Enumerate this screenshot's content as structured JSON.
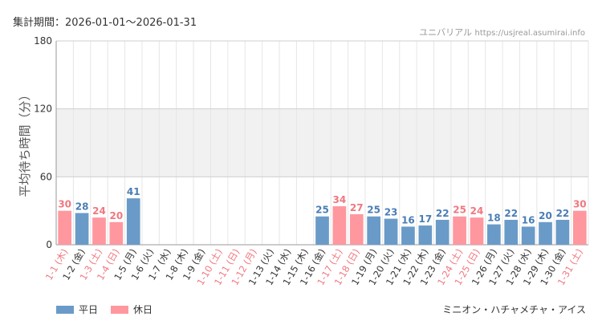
{
  "header": {
    "period": "集計期間：2026-01-01〜2026-01-31",
    "source_name": "ユニバリアル",
    "source_site": "https://usjreal.asumirai.info"
  },
  "footnote": "ミニオン・ハチャメチャ・アイス",
  "legend": [
    {
      "label": "平日",
      "color": "#6a9bc8"
    },
    {
      "label": "休日",
      "color": "#ff979f"
    }
  ],
  "colors": {
    "weekday_bar": "#6a9bc8",
    "holiday_bar": "#ff979f",
    "weekday_label": "#4a7db5",
    "holiday_label": "#f07880",
    "band": "#f1f1f1",
    "grid": "#e6e6e6"
  },
  "chart_data": {
    "type": "bar",
    "title": "",
    "xlabel": "",
    "ylabel": "平均待ち時間（分）",
    "ylim": [
      0,
      180
    ],
    "yticks": [
      0,
      60,
      120,
      180
    ],
    "shaded_band": [
      60,
      120
    ],
    "grid": true,
    "legend_position": "bottom-left",
    "categories": [
      "1-1 (木)",
      "1-2 (金)",
      "1-3 (土)",
      "1-4 (日)",
      "1-5 (月)",
      "1-6 (火)",
      "1-7 (水)",
      "1-8 (木)",
      "1-9 (金)",
      "1-10 (土)",
      "1-11 (日)",
      "1-12 (月)",
      "1-13 (火)",
      "1-14 (水)",
      "1-15 (木)",
      "1-16 (金)",
      "1-17 (土)",
      "1-18 (日)",
      "1-19 (月)",
      "1-20 (火)",
      "1-21 (水)",
      "1-22 (木)",
      "1-23 (金)",
      "1-24 (土)",
      "1-25 (日)",
      "1-26 (月)",
      "1-27 (火)",
      "1-28 (水)",
      "1-29 (木)",
      "1-30 (金)",
      "1-31 (土)"
    ],
    "values": [
      30,
      28,
      24,
      20,
      41,
      null,
      null,
      null,
      null,
      null,
      null,
      null,
      null,
      null,
      null,
      25,
      34,
      27,
      25,
      23,
      16,
      17,
      22,
      25,
      24,
      18,
      22,
      16,
      20,
      22,
      30
    ],
    "day_type": [
      "休日",
      "平日",
      "休日",
      "休日",
      "平日",
      "平日",
      "平日",
      "平日",
      "平日",
      "休日",
      "休日",
      "休日",
      "平日",
      "平日",
      "平日",
      "平日",
      "休日",
      "休日",
      "平日",
      "平日",
      "平日",
      "平日",
      "平日",
      "休日",
      "休日",
      "平日",
      "平日",
      "平日",
      "平日",
      "平日",
      "休日"
    ]
  }
}
